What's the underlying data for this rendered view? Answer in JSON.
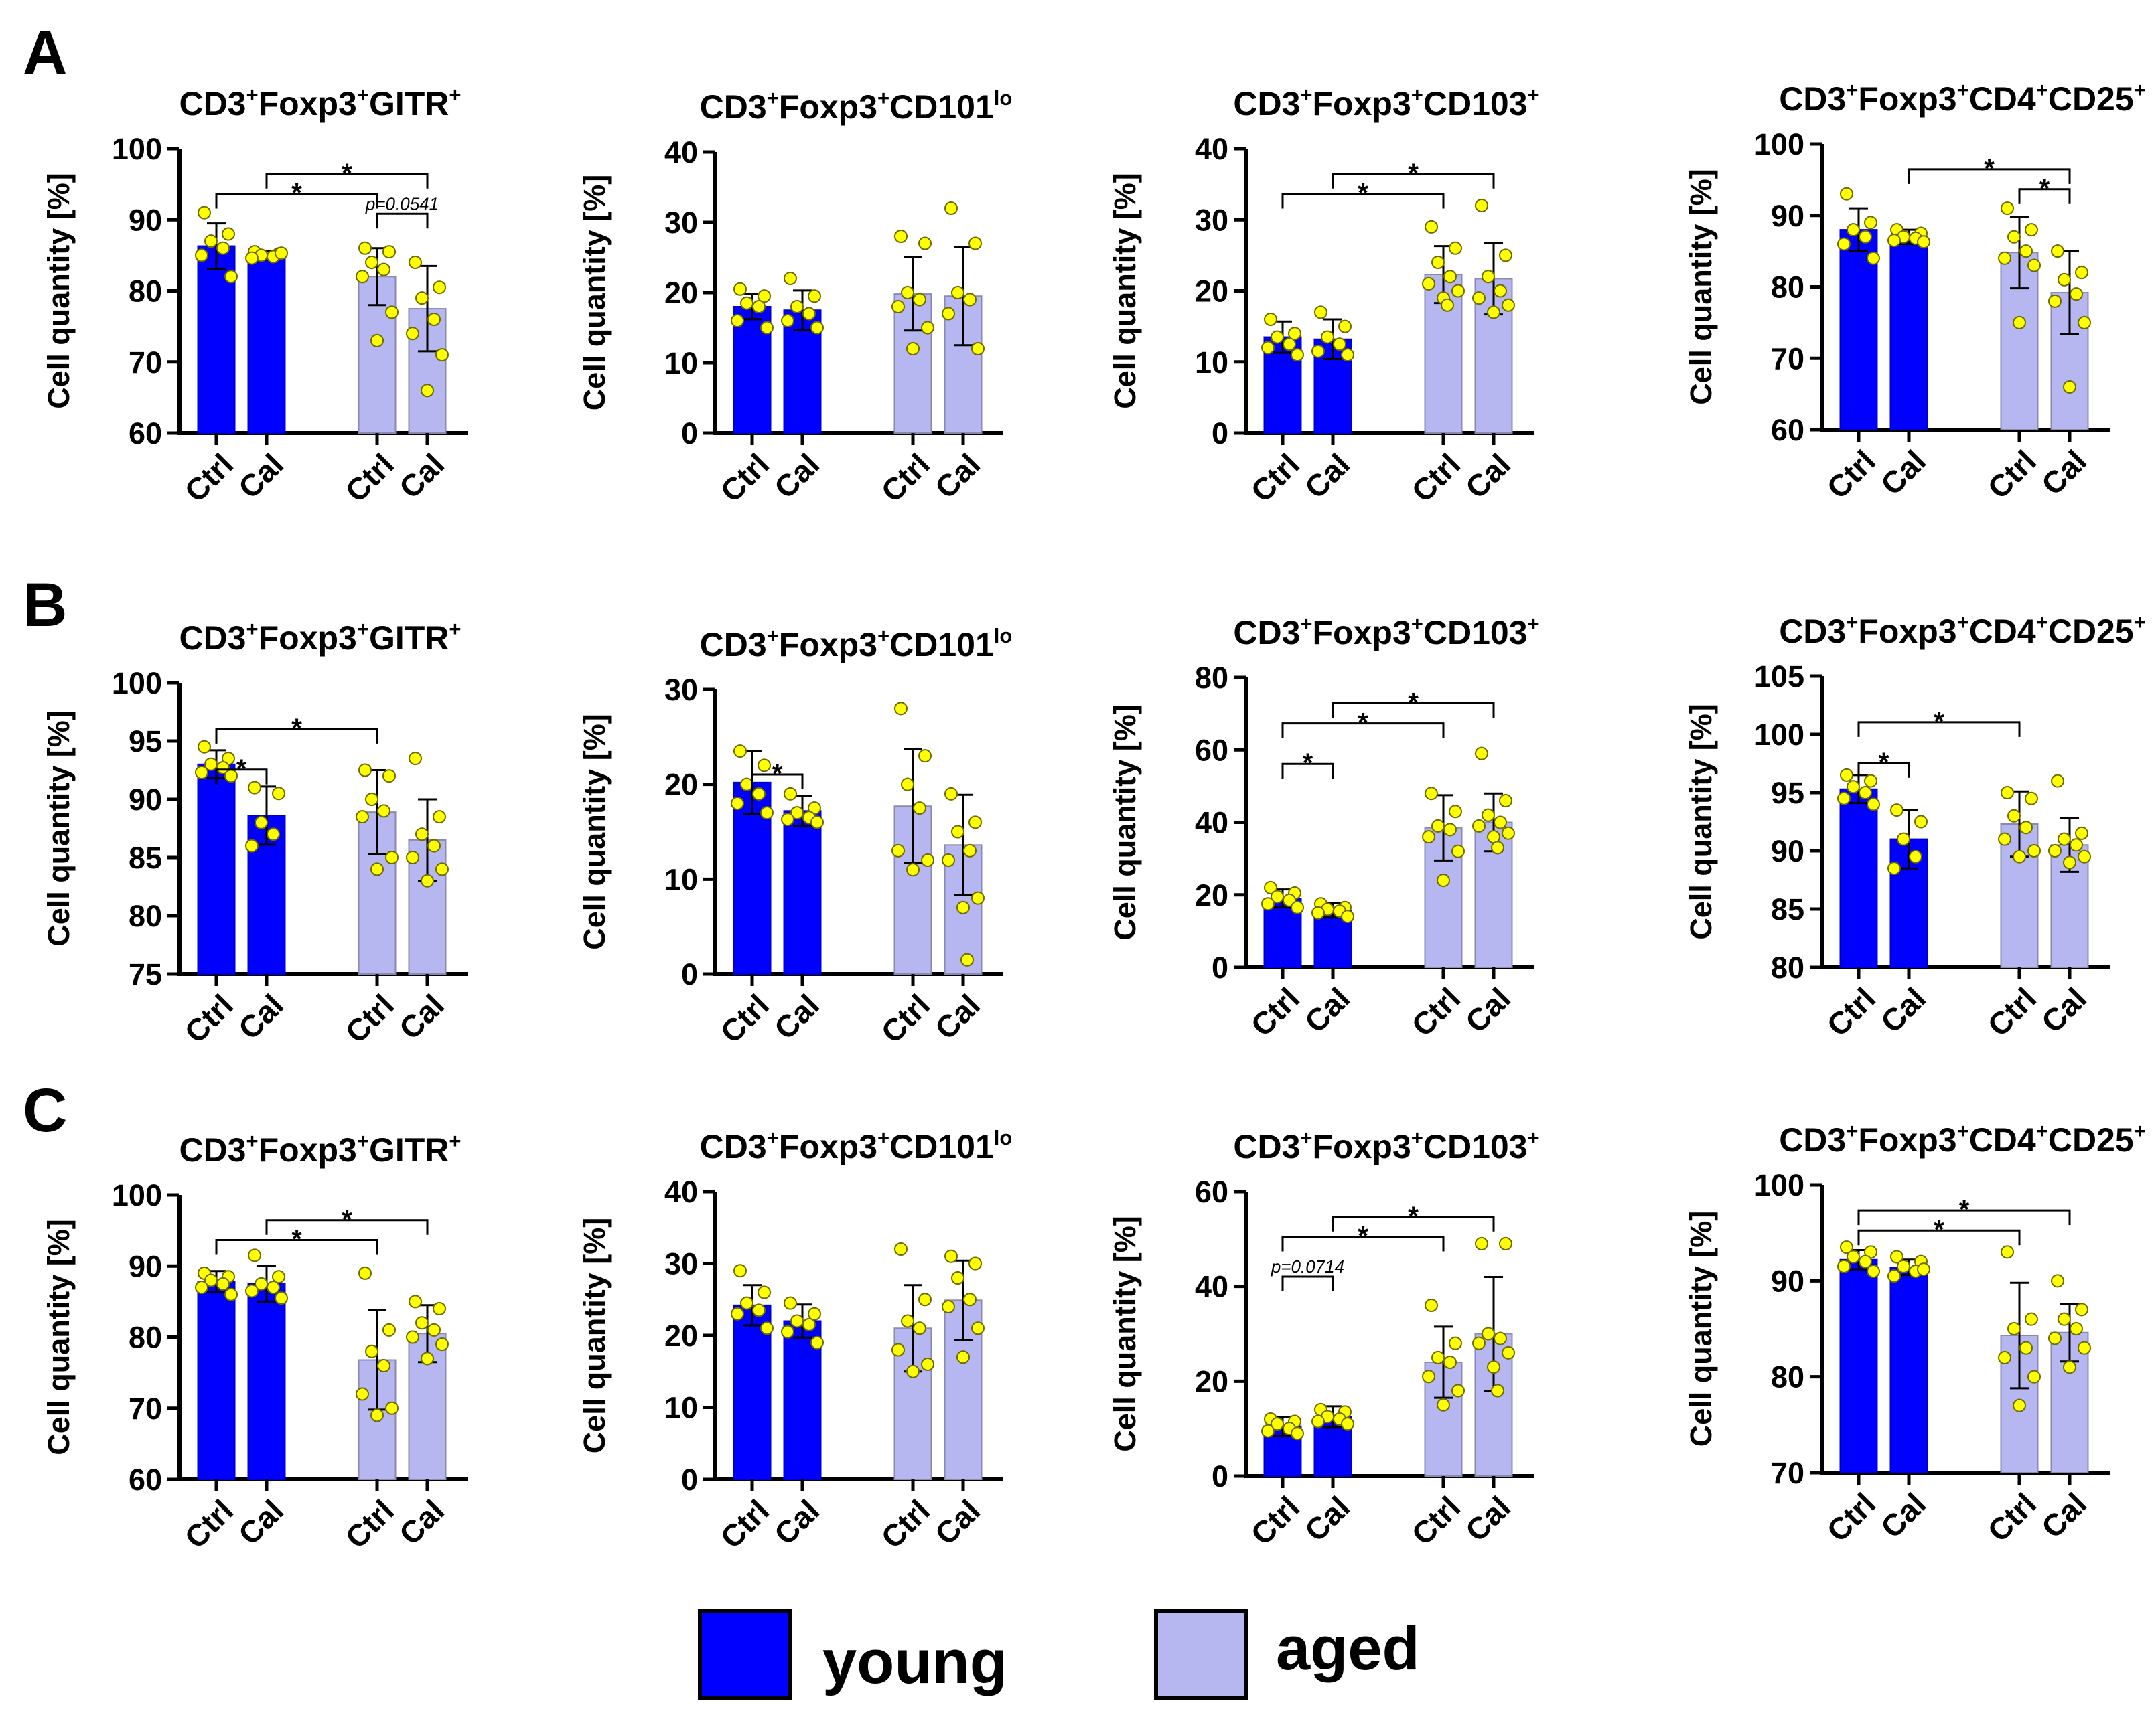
{
  "panel_labels": [
    "A",
    "B",
    "C"
  ],
  "legend": [
    {
      "label": "young",
      "color": "#0000ff"
    },
    {
      "label": "aged",
      "color": "#b6b6f0"
    }
  ],
  "colors": {
    "young": "#0000ff",
    "aged": "#b6b6f0",
    "point": "#ffff00",
    "axis": "#000000"
  },
  "chart_data": [
    {
      "type": "bar",
      "row": "A",
      "title": "CD3",
      "title_parts": [
        "CD3",
        "+",
        "Foxp3",
        "+",
        "GITR",
        "+"
      ],
      "ylabel": "Cell quantity [%]",
      "ylim": [
        60,
        100
      ],
      "yticks": [
        60,
        70,
        80,
        90,
        100
      ],
      "categories": [
        "Ctrl",
        "Cal",
        "Ctrl",
        "Cal"
      ],
      "groups": [
        "young",
        "young",
        "aged",
        "aged"
      ],
      "values": [
        86.3,
        85.0,
        82.0,
        77.5
      ],
      "sd": [
        3.2,
        0.6,
        4.0,
        6.0
      ],
      "points": [
        [
          91,
          88,
          87,
          86,
          85,
          82
        ],
        [
          85.5,
          85.2,
          85,
          84.8,
          84.6,
          85.3
        ],
        [
          86,
          85.5,
          84,
          83,
          82,
          77,
          73
        ],
        [
          84,
          80.5,
          79,
          76,
          74,
          71,
          66
        ]
      ],
      "sig": [
        {
          "a": 0,
          "b": 2,
          "level": 3,
          "label": "*"
        },
        {
          "a": 1,
          "b": 3,
          "level": 4,
          "label": "*"
        },
        {
          "a": 2,
          "b": 3,
          "level": 2,
          "label": "p=0.0541"
        }
      ]
    },
    {
      "type": "bar",
      "row": "A",
      "title": "CD3",
      "title_parts": [
        "CD3",
        "+",
        "Foxp3",
        "+",
        "CD101",
        "lo"
      ],
      "ylabel": "Cell quantity [%]",
      "ylim": [
        0,
        40
      ],
      "yticks": [
        0,
        10,
        20,
        30,
        40
      ],
      "categories": [
        "Ctrl",
        "Cal",
        "Ctrl",
        "Cal"
      ],
      "groups": [
        "young",
        "young",
        "aged",
        "aged"
      ],
      "values": [
        18.0,
        17.5,
        19.8,
        19.5
      ],
      "sd": [
        1.8,
        2.8,
        5.2,
        7.0
      ],
      "points": [
        [
          20.5,
          19.5,
          18.5,
          18,
          16,
          15
        ],
        [
          22,
          19.5,
          18,
          17,
          16,
          15
        ],
        [
          28,
          27,
          20,
          19,
          18,
          15,
          12
        ],
        [
          32,
          27,
          20,
          19,
          17,
          12
        ]
      ],
      "sig": []
    },
    {
      "type": "bar",
      "row": "A",
      "title": "CD3",
      "title_parts": [
        "CD3",
        "+",
        "Foxp3",
        "+",
        "CD103",
        "+"
      ],
      "ylabel": "Cell quantity [%]",
      "ylim": [
        0,
        40
      ],
      "yticks": [
        0,
        10,
        20,
        30,
        40
      ],
      "categories": [
        "Ctrl",
        "Cal",
        "Ctrl",
        "Cal"
      ],
      "groups": [
        "young",
        "young",
        "aged",
        "aged"
      ],
      "values": [
        13.5,
        13.2,
        22.3,
        21.7
      ],
      "sd": [
        2.2,
        2.8,
        4.0,
        5.0
      ],
      "points": [
        [
          16,
          14,
          13.5,
          12.5,
          12,
          11
        ],
        [
          17,
          15,
          13.5,
          12.5,
          11.5,
          11
        ],
        [
          29,
          26,
          24,
          22,
          21,
          20,
          19,
          18
        ],
        [
          32,
          25,
          22,
          20,
          19,
          18,
          17
        ]
      ],
      "sig": [
        {
          "a": 0,
          "b": 2,
          "level": 3,
          "label": "*"
        },
        {
          "a": 1,
          "b": 3,
          "level": 4,
          "label": "*"
        }
      ]
    },
    {
      "type": "bar",
      "row": "A",
      "title": "CD3",
      "title_parts": [
        "CD3",
        "+",
        "Foxp3",
        "+",
        "CD4",
        "+",
        "CD25",
        "+"
      ],
      "ylabel": "Cell quantity [%]",
      "ylim": [
        60,
        100
      ],
      "yticks": [
        60,
        70,
        80,
        90,
        100
      ],
      "categories": [
        "Ctrl",
        "Cal",
        "Ctrl",
        "Cal"
      ],
      "groups": [
        "young",
        "young",
        "aged",
        "aged"
      ],
      "values": [
        88.0,
        87.0,
        84.8,
        79.2
      ],
      "sd": [
        3.0,
        1.0,
        5.0,
        5.8
      ],
      "points": [
        [
          93,
          89,
          88,
          87,
          86,
          84
        ],
        [
          88,
          87.5,
          87,
          86.8,
          86.5,
          86.3
        ],
        [
          91,
          88,
          87,
          85,
          84,
          83,
          75
        ],
        [
          85,
          82,
          81,
          79,
          78,
          75,
          66
        ]
      ],
      "sig": [
        {
          "a": 1,
          "b": 3,
          "level": 4,
          "label": "*"
        },
        {
          "a": 2,
          "b": 3,
          "level": 3,
          "label": "*"
        }
      ]
    },
    {
      "type": "bar",
      "row": "B",
      "title": "CD3",
      "title_parts": [
        "CD3",
        "+",
        "Foxp3",
        "+",
        "GITR",
        "+"
      ],
      "ylabel": "Cell quantity [%]",
      "ylim": [
        75,
        100
      ],
      "yticks": [
        75,
        80,
        85,
        90,
        95,
        100
      ],
      "categories": [
        "Ctrl",
        "Cal",
        "Ctrl",
        "Cal"
      ],
      "groups": [
        "young",
        "young",
        "aged",
        "aged"
      ],
      "values": [
        93.0,
        88.6,
        88.9,
        86.5
      ],
      "sd": [
        1.2,
        2.5,
        3.6,
        3.5
      ],
      "points": [
        [
          94.5,
          93.5,
          93,
          92.7,
          92.3,
          92
        ],
        [
          91,
          90.5,
          88,
          87,
          86
        ],
        [
          92.5,
          92,
          90,
          89,
          88.5,
          85,
          84
        ],
        [
          93.5,
          88.5,
          87,
          86,
          85,
          84,
          83
        ]
      ],
      "sig": [
        {
          "a": 0,
          "b": 1,
          "level": 1,
          "label": "*"
        },
        {
          "a": 0,
          "b": 2,
          "level": 3,
          "label": "*"
        }
      ]
    },
    {
      "type": "bar",
      "row": "B",
      "title": "CD3",
      "title_parts": [
        "CD3",
        "+",
        "Foxp3",
        "+",
        "CD101",
        "lo"
      ],
      "ylabel": "Cell quantity [%]",
      "ylim": [
        0,
        30
      ],
      "yticks": [
        0,
        10,
        20,
        30
      ],
      "categories": [
        "Ctrl",
        "Cal",
        "Ctrl",
        "Cal"
      ],
      "groups": [
        "young",
        "young",
        "aged",
        "aged"
      ],
      "values": [
        20.2,
        17.2,
        17.7,
        13.6
      ],
      "sd": [
        3.3,
        1.6,
        6.0,
        5.3
      ],
      "points": [
        [
          23.5,
          22,
          20,
          19,
          18,
          17
        ],
        [
          19,
          17.5,
          17,
          16.5,
          16.3,
          16
        ],
        [
          28,
          23,
          20,
          17.5,
          13,
          12,
          11
        ],
        [
          19,
          16,
          15,
          13,
          12,
          8,
          7,
          1.5
        ]
      ],
      "sig": [
        {
          "a": 0,
          "b": 1,
          "level": 1,
          "label": "*"
        }
      ]
    },
    {
      "type": "bar",
      "row": "B",
      "title": "CD3",
      "title_parts": [
        "CD3",
        "+",
        "Foxp3",
        "+",
        "CD103",
        "+"
      ],
      "ylabel": "Cell quantity [%]",
      "ylim": [
        0,
        80
      ],
      "yticks": [
        0,
        20,
        40,
        60,
        80
      ],
      "categories": [
        "Ctrl",
        "Cal",
        "Ctrl",
        "Cal"
      ],
      "groups": [
        "young",
        "young",
        "aged",
        "aged"
      ],
      "values": [
        19.0,
        15.7,
        38.5,
        40.0
      ],
      "sd": [
        2.5,
        2.0,
        9.0,
        8.0
      ],
      "points": [
        [
          22,
          20.5,
          19.5,
          18.5,
          17.5,
          16.5
        ],
        [
          17.5,
          16.5,
          16,
          15.5,
          15,
          14
        ],
        [
          48,
          43,
          39,
          38,
          36,
          32,
          24
        ],
        [
          59,
          46,
          42,
          40,
          39,
          37,
          36,
          33
        ]
      ],
      "sig": [
        {
          "a": 0,
          "b": 1,
          "level": 1,
          "label": "*"
        },
        {
          "a": 0,
          "b": 2,
          "level": 3,
          "label": "*"
        },
        {
          "a": 1,
          "b": 3,
          "level": 4,
          "label": "*"
        }
      ]
    },
    {
      "type": "bar",
      "row": "B",
      "title": "CD3",
      "title_parts": [
        "CD3",
        "+",
        "Foxp3",
        "+",
        "CD4",
        "+",
        "CD25",
        "+"
      ],
      "ylabel": "Cell quantity [%]",
      "ylim": [
        80,
        105
      ],
      "yticks": [
        80,
        85,
        90,
        95,
        100,
        105
      ],
      "categories": [
        "Ctrl",
        "Cal",
        "Ctrl",
        "Cal"
      ],
      "groups": [
        "young",
        "young",
        "aged",
        "aged"
      ],
      "values": [
        95.3,
        91.0,
        92.3,
        90.5
      ],
      "sd": [
        1.2,
        2.5,
        2.8,
        2.3
      ],
      "points": [
        [
          96.5,
          96,
          95.5,
          95,
          94.5,
          94
        ],
        [
          93.5,
          92.5,
          91,
          89.5,
          88.5
        ],
        [
          95,
          94.5,
          93,
          92,
          91,
          90,
          89.5
        ],
        [
          96,
          91.5,
          91,
          90.5,
          90,
          89.5,
          89
        ]
      ],
      "sig": [
        {
          "a": 0,
          "b": 1,
          "level": 1,
          "label": "*"
        },
        {
          "a": 0,
          "b": 2,
          "level": 3,
          "label": "*"
        }
      ]
    },
    {
      "type": "bar",
      "row": "C",
      "title": "CD3",
      "title_parts": [
        "CD3",
        "+",
        "Foxp3",
        "+",
        "GITR",
        "+"
      ],
      "ylabel": "Cell quantity [%]",
      "ylim": [
        60,
        100
      ],
      "yticks": [
        60,
        70,
        80,
        90,
        100
      ],
      "categories": [
        "Ctrl",
        "Cal",
        "Ctrl",
        "Cal"
      ],
      "groups": [
        "young",
        "young",
        "aged",
        "aged"
      ],
      "values": [
        87.8,
        87.5,
        76.8,
        80.5
      ],
      "sd": [
        1.5,
        2.5,
        7.0,
        4.0
      ],
      "points": [
        [
          89,
          88.5,
          88,
          87.5,
          87,
          86
        ],
        [
          91.5,
          88.5,
          87.5,
          87,
          86.5,
          85.5
        ],
        [
          89,
          81,
          78,
          76,
          72,
          70,
          69
        ],
        [
          85,
          84,
          82,
          81,
          80,
          79,
          77
        ]
      ],
      "sig": [
        {
          "a": 0,
          "b": 2,
          "level": 3,
          "label": "*"
        },
        {
          "a": 1,
          "b": 3,
          "level": 4,
          "label": "*"
        }
      ]
    },
    {
      "type": "bar",
      "row": "C",
      "title": "CD3",
      "title_parts": [
        "CD3",
        "+",
        "Foxp3",
        "+",
        "CD101",
        "lo"
      ],
      "ylabel": "Cell quantity [%]",
      "ylim": [
        0,
        40
      ],
      "yticks": [
        0,
        10,
        20,
        30,
        40
      ],
      "categories": [
        "Ctrl",
        "Cal",
        "Ctrl",
        "Cal"
      ],
      "groups": [
        "young",
        "young",
        "aged",
        "aged"
      ],
      "values": [
        24.2,
        22.0,
        21.0,
        24.9
      ],
      "sd": [
        2.8,
        2.3,
        6.0,
        5.5
      ],
      "points": [
        [
          29,
          26,
          24.5,
          23.5,
          23,
          21
        ],
        [
          24.5,
          23,
          22,
          21.5,
          20.5,
          19
        ],
        [
          32,
          25,
          22,
          21,
          18,
          16,
          15
        ],
        [
          31,
          30,
          28,
          25,
          24,
          21,
          17
        ]
      ],
      "sig": []
    },
    {
      "type": "bar",
      "row": "C",
      "title": "CD3",
      "title_parts": [
        "CD3",
        "+",
        "Foxp3",
        "+",
        "CD103",
        "+"
      ],
      "ylabel": "Cell quantity [%]",
      "ylim": [
        0,
        60
      ],
      "yticks": [
        0,
        20,
        40,
        60
      ],
      "categories": [
        "Ctrl",
        "Cal",
        "Ctrl",
        "Cal"
      ],
      "groups": [
        "young",
        "young",
        "aged",
        "aged"
      ],
      "values": [
        10.5,
        12.5,
        24.0,
        30.0
      ],
      "sd": [
        2.0,
        2.2,
        7.5,
        12.0
      ],
      "points": [
        [
          12,
          11.5,
          11,
          10,
          9.5,
          9
        ],
        [
          14,
          13.5,
          12.5,
          12,
          11.5,
          11
        ],
        [
          36,
          28,
          25,
          24,
          21,
          18,
          15
        ],
        [
          49,
          49,
          30,
          29,
          28,
          26,
          23,
          18
        ]
      ],
      "sig": [
        {
          "a": 0,
          "b": 1,
          "level": 1,
          "label": "p=0.0714"
        },
        {
          "a": 0,
          "b": 2,
          "level": 3,
          "label": "*"
        },
        {
          "a": 1,
          "b": 3,
          "level": 4,
          "label": "*"
        }
      ]
    },
    {
      "type": "bar",
      "row": "C",
      "title": "CD3",
      "title_parts": [
        "CD3",
        "+",
        "Foxp3",
        "+",
        "CD4",
        "+",
        "CD25",
        "+"
      ],
      "ylabel": "Cell quantity [%]",
      "ylim": [
        70,
        100
      ],
      "yticks": [
        70,
        80,
        90,
        100
      ],
      "categories": [
        "Ctrl",
        "Cal",
        "Ctrl",
        "Cal"
      ],
      "groups": [
        "young",
        "young",
        "aged",
        "aged"
      ],
      "values": [
        92.2,
        91.4,
        84.3,
        84.6
      ],
      "sd": [
        1.0,
        0.8,
        5.5,
        3.0
      ],
      "points": [
        [
          93.5,
          93,
          92.5,
          92,
          91.5,
          91
        ],
        [
          92.5,
          92,
          91.5,
          91,
          90.5,
          91.2
        ],
        [
          93,
          86,
          85,
          83,
          82,
          80,
          77
        ],
        [
          90,
          87,
          86,
          85,
          84,
          83,
          81
        ]
      ],
      "sig": [
        {
          "a": 0,
          "b": 2,
          "level": 3,
          "label": "*"
        },
        {
          "a": 0,
          "b": 3,
          "level": 4,
          "label": "*"
        }
      ]
    }
  ]
}
